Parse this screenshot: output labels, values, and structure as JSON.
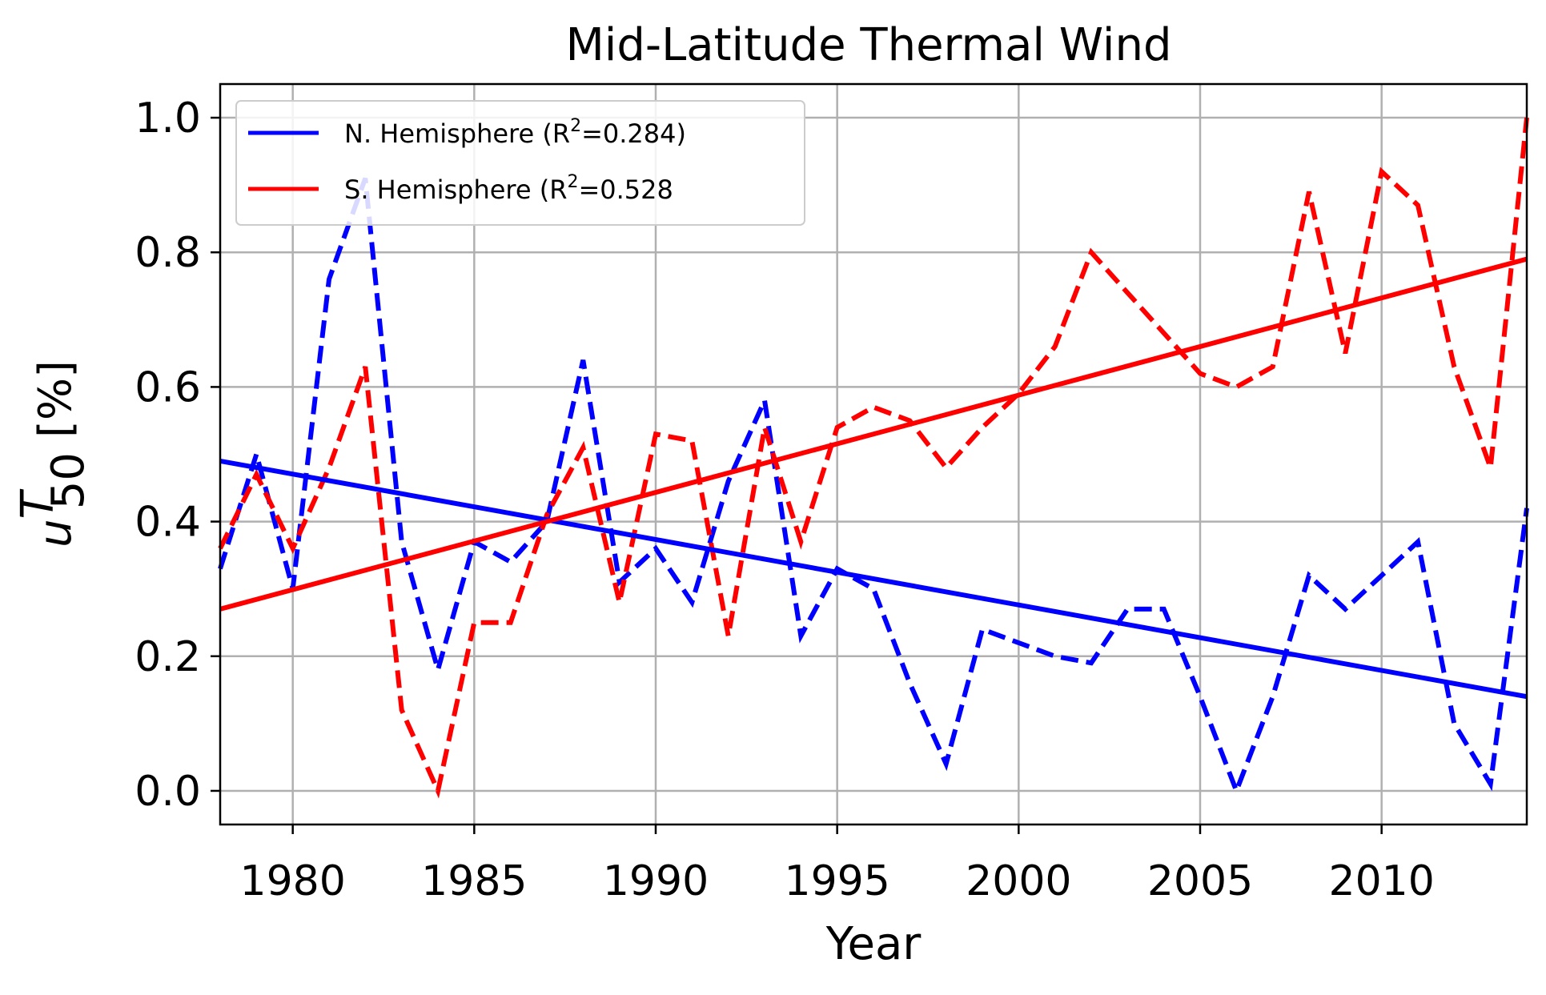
{
  "chart_data": {
    "type": "line",
    "title": "Mid-Latitude Thermal Wind",
    "xlabel": "Year",
    "ylabel": "[%]",
    "ylabel_symbol": "u",
    "ylabel_sup": "T",
    "ylabel_sub": "50",
    "xlim": [
      1978,
      2014
    ],
    "ylim": [
      -0.05,
      1.05
    ],
    "xticks": [
      1980,
      1985,
      1990,
      1995,
      2000,
      2005,
      2010
    ],
    "yticks": [
      0.0,
      0.2,
      0.4,
      0.6,
      0.8,
      1.0
    ],
    "ytick_labels": [
      "0.0",
      "0.2",
      "0.4",
      "0.6",
      "0.8",
      "1.0"
    ],
    "grid": true,
    "legend_position": "upper-left",
    "legend": [
      {
        "prefix": "N. Hemisphere (R",
        "sup": "2",
        "suffix": "=0.284)",
        "color": "#0000ff"
      },
      {
        "prefix": "S. Hemisphere (R",
        "sup": "2",
        "suffix": "=0.528",
        "color": "#ff0000"
      }
    ],
    "x": [
      1978,
      1979,
      1980,
      1981,
      1982,
      1983,
      1984,
      1985,
      1986,
      1987,
      1988,
      1989,
      1990,
      1991,
      1992,
      1993,
      1994,
      1995,
      1996,
      1997,
      1998,
      1999,
      2000,
      2001,
      2002,
      2003,
      2004,
      2005,
      2006,
      2007,
      2008,
      2009,
      2010,
      2011,
      2012,
      2013,
      2014
    ],
    "series": [
      {
        "color": "#0000ff",
        "style": "dashed",
        "values": [
          0.33,
          0.5,
          0.3,
          0.76,
          0.91,
          0.37,
          0.18,
          0.37,
          0.34,
          0.4,
          0.64,
          0.31,
          0.36,
          0.28,
          0.46,
          0.58,
          0.23,
          0.33,
          0.3,
          0.16,
          0.04,
          0.24,
          0.22,
          0.2,
          0.19,
          0.27,
          0.27,
          0.14,
          0.0,
          0.14,
          0.32,
          0.27,
          0.32,
          0.37,
          0.1,
          0.01,
          0.42
        ]
      },
      {
        "color": "#ff0000",
        "style": "dashed",
        "values": [
          0.36,
          0.47,
          0.36,
          0.48,
          0.63,
          0.12,
          0.0,
          0.25,
          0.25,
          0.41,
          0.51,
          0.28,
          0.53,
          0.52,
          0.23,
          0.54,
          0.37,
          0.54,
          0.57,
          0.55,
          0.48,
          0.54,
          0.59,
          0.66,
          0.8,
          0.74,
          0.68,
          0.62,
          0.6,
          0.63,
          0.89,
          0.65,
          0.92,
          0.87,
          0.63,
          0.48,
          1.0
        ]
      },
      {
        "color": "#0000ff",
        "style": "solid",
        "values_at_xlim": [
          0.49,
          0.14
        ]
      },
      {
        "color": "#ff0000",
        "style": "solid",
        "values_at_xlim": [
          0.27,
          0.79
        ]
      }
    ]
  }
}
